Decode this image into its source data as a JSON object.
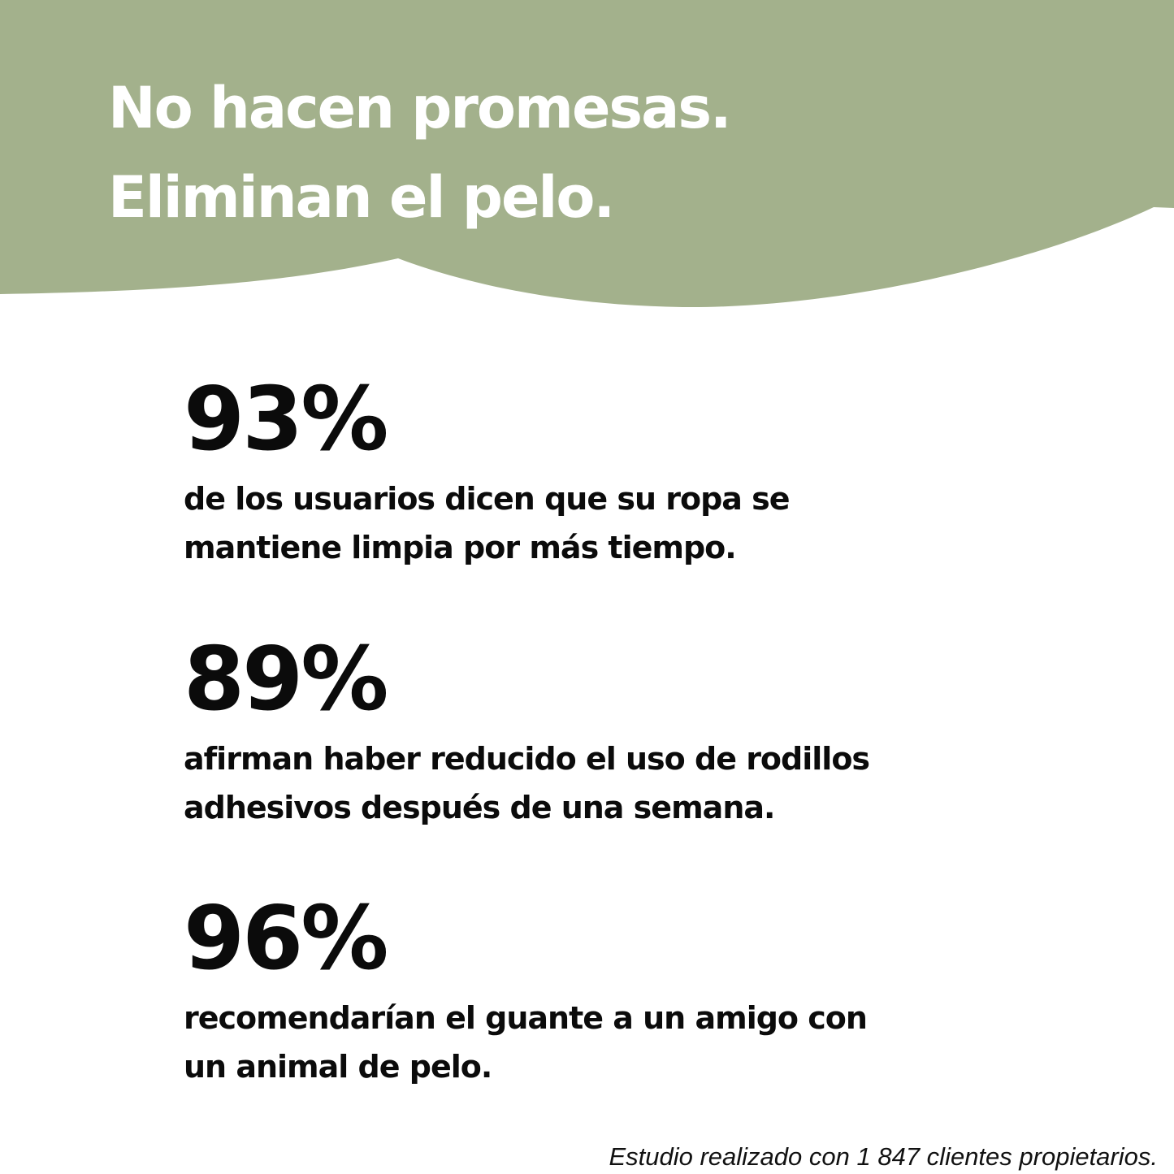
{
  "header": {
    "background_color": "#a3b18c",
    "headline_lines": [
      "No hacen promesas.",
      "Eliminan el pelo."
    ]
  },
  "stats": [
    {
      "value": "93%",
      "description_lines": [
        "de los usuarios dicen que su ropa se",
        "mantiene limpia por más tiempo."
      ]
    },
    {
      "value": "89%",
      "description_lines": [
        "afirman haber reducido el uso de rodillos",
        "adhesivos después de una semana."
      ]
    },
    {
      "value": "96%",
      "description_lines": [
        "recomendarían el guante a un amigo con",
        "un animal de pelo."
      ]
    }
  ],
  "footnote": "Estudio realizado con 1 847 clientes propietarios."
}
